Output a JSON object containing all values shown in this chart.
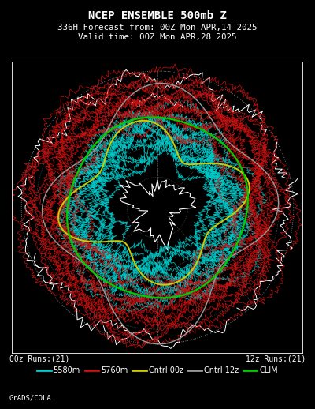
{
  "title_line1": "NCEP ENSEMBLE 500mb Z",
  "title_line2": "336H Forecast from: 00Z Mon APR,14 2025",
  "title_line3": "Valid time: 00Z Mon APR,28 2025",
  "bg_color": "#000000",
  "border_color": "#ffffff",
  "grid_color": "#888888",
  "map_color": "#ffffff",
  "cyan_color": "#00cccc",
  "red_color": "#cc1111",
  "yellow_color": "#cccc00",
  "gray_color": "#999999",
  "green_color": "#00cc00",
  "legend_items": [
    {
      "label": "5580m",
      "color": "#00cccc"
    },
    {
      "label": "5760m",
      "color": "#cc1111"
    },
    {
      "label": "Cntrl 00z",
      "color": "#cccc00"
    },
    {
      "label": "Cntrl 12z",
      "color": "#999999"
    },
    {
      "label": "CLIM",
      "color": "#00cc00"
    }
  ],
  "label_00z": "00z Runs:(21)",
  "label_12z": "12z Runs:(21)",
  "credit": "GrADS/COLA",
  "n_cyan_members": 21,
  "n_red_members": 21,
  "seed": 42
}
